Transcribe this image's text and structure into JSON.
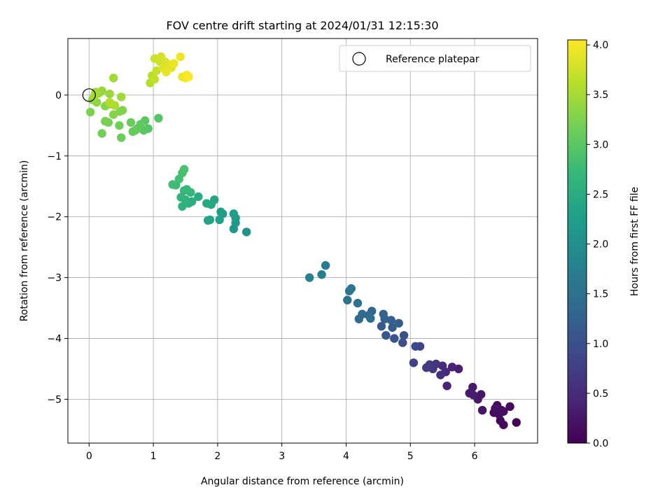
{
  "chart_data": {
    "type": "scatter",
    "title": "FOV centre drift starting at 2024/01/31 12:15:30",
    "xlabel": "Angular distance from reference (arcmin)",
    "ylabel": "Rotation from reference (arcmin)",
    "xlim": [
      -0.33,
      6.98
    ],
    "ylim": [
      -5.72,
      0.93
    ],
    "x_ticks": [
      0,
      1,
      2,
      3,
      4,
      5,
      6
    ],
    "y_ticks": [
      0,
      -1,
      -2,
      -3,
      -4,
      -5
    ],
    "x_tick_labels": [
      "0",
      "1",
      "2",
      "3",
      "4",
      "5",
      "6"
    ],
    "y_tick_labels": [
      "0",
      "−1",
      "−2",
      "−3",
      "−4",
      "−5"
    ],
    "grid": true,
    "legend": {
      "position": "top-right",
      "entries": [
        "Reference platepar"
      ]
    },
    "reference_point": {
      "x": 0,
      "y": 0
    },
    "colorbar": {
      "label": "Hours from first FF file",
      "range": [
        0,
        4.05
      ],
      "ticks": [
        0,
        0.5,
        1,
        1.5,
        2,
        2.5,
        3,
        3.5,
        4
      ],
      "tick_labels": [
        "0.0",
        "0.5",
        "1.0",
        "1.5",
        "2.0",
        "2.5",
        "3.0",
        "3.5",
        "4.0"
      ],
      "colormap": "viridis",
      "colormap_stops": [
        "#440154",
        "#482878",
        "#3e4989",
        "#31688e",
        "#26828e",
        "#1f9e89",
        "#35b779",
        "#6ece58",
        "#b5de2b",
        "#fde725"
      ]
    },
    "series": [
      {
        "points": [
          {
            "x": 6.65,
            "y": -5.38,
            "h": 0.02
          },
          {
            "x": 6.45,
            "y": -5.42,
            "h": 0.05
          },
          {
            "x": 6.4,
            "y": -5.35,
            "h": 0.07
          },
          {
            "x": 6.55,
            "y": -5.12,
            "h": 0.08
          },
          {
            "x": 6.35,
            "y": -5.1,
            "h": 0.1
          },
          {
            "x": 6.42,
            "y": -5.18,
            "h": 0.12
          },
          {
            "x": 6.3,
            "y": -5.22,
            "h": 0.13
          },
          {
            "x": 6.38,
            "y": -5.25,
            "h": 0.15
          },
          {
            "x": 6.45,
            "y": -5.2,
            "h": 0.17
          },
          {
            "x": 6.32,
            "y": -5.15,
            "h": 0.19
          },
          {
            "x": 6.12,
            "y": -5.18,
            "h": 0.22
          },
          {
            "x": 6.1,
            "y": -4.92,
            "h": 0.24
          },
          {
            "x": 6.05,
            "y": -5.0,
            "h": 0.26
          },
          {
            "x": 5.97,
            "y": -4.8,
            "h": 0.28
          },
          {
            "x": 5.92,
            "y": -4.9,
            "h": 0.3
          },
          {
            "x": 5.98,
            "y": -4.93,
            "h": 0.32
          },
          {
            "x": 5.75,
            "y": -4.5,
            "h": 0.36
          },
          {
            "x": 5.65,
            "y": -4.47,
            "h": 0.4
          },
          {
            "x": 5.57,
            "y": -4.78,
            "h": 0.44
          },
          {
            "x": 5.55,
            "y": -4.55,
            "h": 0.48
          },
          {
            "x": 5.5,
            "y": -4.45,
            "h": 0.52
          },
          {
            "x": 5.47,
            "y": -4.6,
            "h": 0.56
          },
          {
            "x": 5.4,
            "y": -4.42,
            "h": 0.6
          },
          {
            "x": 5.35,
            "y": -4.5,
            "h": 0.64
          },
          {
            "x": 5.3,
            "y": -4.43,
            "h": 0.68
          },
          {
            "x": 5.25,
            "y": -4.48,
            "h": 0.72
          },
          {
            "x": 5.05,
            "y": -4.4,
            "h": 0.8
          },
          {
            "x": 5.15,
            "y": -4.13,
            "h": 0.85
          },
          {
            "x": 5.08,
            "y": -4.13,
            "h": 0.9
          },
          {
            "x": 4.88,
            "y": -4.07,
            "h": 0.98
          },
          {
            "x": 4.9,
            "y": -3.95,
            "h": 1.02
          },
          {
            "x": 4.75,
            "y": -4.0,
            "h": 1.06
          },
          {
            "x": 4.62,
            "y": -3.95,
            "h": 1.1
          },
          {
            "x": 4.55,
            "y": -3.8,
            "h": 1.14
          },
          {
            "x": 4.72,
            "y": -3.82,
            "h": 1.17
          },
          {
            "x": 4.82,
            "y": -3.75,
            "h": 1.2
          },
          {
            "x": 4.7,
            "y": -3.7,
            "h": 1.23
          },
          {
            "x": 4.6,
            "y": -3.68,
            "h": 1.26
          },
          {
            "x": 4.58,
            "y": -3.6,
            "h": 1.29
          },
          {
            "x": 4.4,
            "y": -3.55,
            "h": 1.32
          },
          {
            "x": 4.35,
            "y": -3.62,
            "h": 1.35
          },
          {
            "x": 4.25,
            "y": -3.6,
            "h": 1.38
          },
          {
            "x": 4.2,
            "y": -3.68,
            "h": 1.41
          },
          {
            "x": 4.38,
            "y": -3.67,
            "h": 1.44
          },
          {
            "x": 4.18,
            "y": -3.42,
            "h": 1.48
          },
          {
            "x": 4.02,
            "y": -3.37,
            "h": 1.52
          },
          {
            "x": 4.05,
            "y": -3.22,
            "h": 1.56
          },
          {
            "x": 4.08,
            "y": -3.18,
            "h": 1.6
          },
          {
            "x": 3.68,
            "y": -2.8,
            "h": 1.68
          },
          {
            "x": 3.62,
            "y": -2.95,
            "h": 1.72
          },
          {
            "x": 3.43,
            "y": -3.0,
            "h": 1.78
          },
          {
            "x": 2.45,
            "y": -2.25,
            "h": 2.08
          },
          {
            "x": 2.25,
            "y": -2.2,
            "h": 2.12
          },
          {
            "x": 2.28,
            "y": -2.1,
            "h": 2.15
          },
          {
            "x": 2.28,
            "y": -2.02,
            "h": 2.18
          },
          {
            "x": 2.25,
            "y": -1.95,
            "h": 2.21
          },
          {
            "x": 2.08,
            "y": -1.95,
            "h": 2.24
          },
          {
            "x": 2.05,
            "y": -1.92,
            "h": 2.27
          },
          {
            "x": 2.03,
            "y": -2.05,
            "h": 2.3
          },
          {
            "x": 1.88,
            "y": -2.05,
            "h": 2.33
          },
          {
            "x": 1.85,
            "y": -2.06,
            "h": 2.36
          },
          {
            "x": 1.95,
            "y": -1.72,
            "h": 2.39
          },
          {
            "x": 1.9,
            "y": -1.8,
            "h": 2.42
          },
          {
            "x": 1.83,
            "y": -1.78,
            "h": 2.45
          },
          {
            "x": 1.7,
            "y": -1.67,
            "h": 2.48
          },
          {
            "x": 1.6,
            "y": -1.75,
            "h": 2.51
          },
          {
            "x": 1.55,
            "y": -1.78,
            "h": 2.54
          },
          {
            "x": 1.5,
            "y": -1.72,
            "h": 2.57
          },
          {
            "x": 1.45,
            "y": -1.83,
            "h": 2.6
          },
          {
            "x": 1.43,
            "y": -1.68,
            "h": 2.63
          },
          {
            "x": 1.48,
            "y": -1.57,
            "h": 2.66
          },
          {
            "x": 1.58,
            "y": -1.6,
            "h": 2.69
          },
          {
            "x": 1.52,
            "y": -1.55,
            "h": 2.72
          },
          {
            "x": 1.35,
            "y": -1.48,
            "h": 2.75
          },
          {
            "x": 1.3,
            "y": -1.47,
            "h": 2.78
          },
          {
            "x": 1.4,
            "y": -1.38,
            "h": 2.81
          },
          {
            "x": 1.45,
            "y": -1.28,
            "h": 2.84
          },
          {
            "x": 1.48,
            "y": -1.22,
            "h": 2.87
          },
          {
            "x": 1.08,
            "y": -0.38,
            "h": 2.95
          },
          {
            "x": 0.92,
            "y": -0.55,
            "h": 2.97
          },
          {
            "x": 0.85,
            "y": -0.58,
            "h": 2.99
          },
          {
            "x": 0.87,
            "y": -0.42,
            "h": 3.01
          },
          {
            "x": 0.8,
            "y": -0.48,
            "h": 3.03
          },
          {
            "x": 0.75,
            "y": -0.55,
            "h": 3.05
          },
          {
            "x": 0.72,
            "y": -0.58,
            "h": 3.07
          },
          {
            "x": 0.68,
            "y": -0.6,
            "h": 3.09
          },
          {
            "x": 0.65,
            "y": -0.45,
            "h": 3.11
          },
          {
            "x": 0.5,
            "y": -0.7,
            "h": 3.13
          },
          {
            "x": 0.47,
            "y": -0.5,
            "h": 3.15
          },
          {
            "x": 0.2,
            "y": -0.63,
            "h": 3.17
          },
          {
            "x": 0.3,
            "y": -0.45,
            "h": 3.19
          },
          {
            "x": 0.25,
            "y": -0.43,
            "h": 3.21
          },
          {
            "x": 0.02,
            "y": -0.28,
            "h": 3.23
          },
          {
            "x": 0.52,
            "y": -0.25,
            "h": 3.25
          },
          {
            "x": 0.48,
            "y": -0.27,
            "h": 3.27
          },
          {
            "x": 0.38,
            "y": -0.32,
            "h": 3.29
          },
          {
            "x": 0.25,
            "y": -0.18,
            "h": 3.31
          },
          {
            "x": 0.3,
            "y": -0.15,
            "h": 3.33
          },
          {
            "x": 0.12,
            "y": -0.12,
            "h": 3.35
          },
          {
            "x": 0.05,
            "y": -0.08,
            "h": 3.37
          },
          {
            "x": 0.15,
            "y": 0.03,
            "h": 3.39
          },
          {
            "x": 0.2,
            "y": 0.07,
            "h": 3.41
          },
          {
            "x": 0.32,
            "y": 0.02,
            "h": 3.43
          },
          {
            "x": 0.5,
            "y": -0.03,
            "h": 3.45
          },
          {
            "x": 0.38,
            "y": 0.28,
            "h": 3.47
          },
          {
            "x": 0.1,
            "y": 0.05,
            "h": 3.49
          },
          {
            "x": 0.08,
            "y": -0.02,
            "h": 3.51
          },
          {
            "x": 0.35,
            "y": -0.15,
            "h": 3.53
          },
          {
            "x": 0.4,
            "y": -0.17,
            "h": 3.55
          },
          {
            "x": 0.32,
            "y": -0.12,
            "h": 3.57
          },
          {
            "x": 0.95,
            "y": 0.2,
            "h": 3.6
          },
          {
            "x": 0.98,
            "y": 0.32,
            "h": 3.63
          },
          {
            "x": 1.02,
            "y": 0.26,
            "h": 3.66
          },
          {
            "x": 1.05,
            "y": 0.4,
            "h": 3.7
          },
          {
            "x": 1.02,
            "y": 0.6,
            "h": 3.73
          },
          {
            "x": 1.1,
            "y": 0.55,
            "h": 3.76
          },
          {
            "x": 1.12,
            "y": 0.63,
            "h": 3.79
          },
          {
            "x": 1.18,
            "y": 0.55,
            "h": 3.82
          },
          {
            "x": 1.15,
            "y": 0.45,
            "h": 3.85
          },
          {
            "x": 1.25,
            "y": 0.5,
            "h": 3.87
          },
          {
            "x": 1.28,
            "y": 0.45,
            "h": 3.89
          },
          {
            "x": 1.2,
            "y": 0.38,
            "h": 3.91
          },
          {
            "x": 1.32,
            "y": 0.52,
            "h": 3.93
          },
          {
            "x": 1.42,
            "y": 0.63,
            "h": 3.95
          },
          {
            "x": 1.45,
            "y": 0.3,
            "h": 3.97
          },
          {
            "x": 1.5,
            "y": 0.28,
            "h": 3.99
          },
          {
            "x": 1.52,
            "y": 0.33,
            "h": 4.01
          },
          {
            "x": 1.55,
            "y": 0.3,
            "h": 4.03
          }
        ]
      }
    ]
  }
}
